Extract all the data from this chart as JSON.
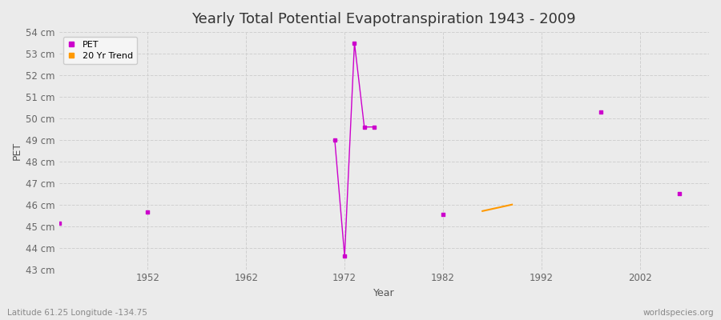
{
  "title": "Yearly Total Potential Evapotranspiration 1943 - 2009",
  "xlabel": "Year",
  "ylabel": "PET",
  "background_color": "#ebebeb",
  "plot_bg_color": "#ebebeb",
  "grid_color": "#d0d0d0",
  "ylim": [
    43,
    54
  ],
  "yticks": [
    43,
    44,
    45,
    46,
    47,
    48,
    49,
    50,
    51,
    52,
    53,
    54
  ],
  "ytick_labels": [
    "43 cm",
    "44 cm",
    "45 cm",
    "46 cm",
    "47 cm",
    "48 cm",
    "49 cm",
    "50 cm",
    "51 cm",
    "52 cm",
    "53 cm",
    "54 cm"
  ],
  "xlim": [
    1943,
    2009
  ],
  "xticks": [
    1952,
    1962,
    1972,
    1982,
    1992,
    2002
  ],
  "pet_color": "#cc00cc",
  "trend_color": "#ff9900",
  "isolated_years": [
    1943,
    1952,
    1982,
    1998,
    2006
  ],
  "isolated_values": [
    45.15,
    45.65,
    45.55,
    50.3,
    46.5
  ],
  "connected_segments": [
    {
      "years": [
        1971,
        1972,
        1973,
        1974,
        1975
      ],
      "values": [
        49.0,
        43.6,
        53.5,
        49.6,
        49.6
      ]
    }
  ],
  "trend_x": [
    1986,
    1989
  ],
  "trend_y": [
    45.7,
    46.0
  ],
  "footnote_left": "Latitude 61.25 Longitude -134.75",
  "footnote_right": "worldspecies.org",
  "title_fontsize": 13,
  "label_fontsize": 9,
  "tick_fontsize": 8.5
}
